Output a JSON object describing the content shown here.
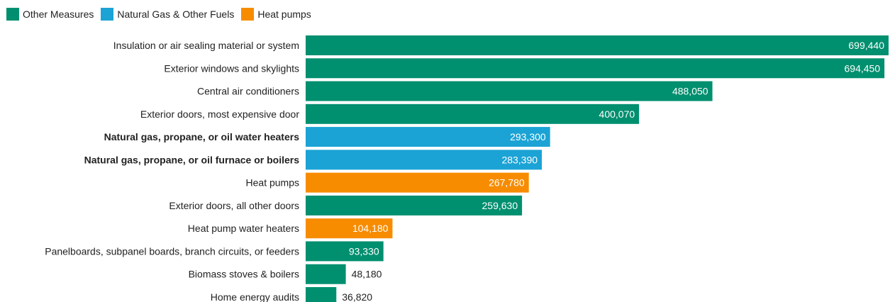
{
  "legend": [
    {
      "label": "Other Measures",
      "color": "#008f6f"
    },
    {
      "label": "Natural Gas & Other Fuels",
      "color": "#1ba3d5"
    },
    {
      "label": "Heat pumps",
      "color": "#f78c00"
    }
  ],
  "chart_data": {
    "type": "bar",
    "orientation": "horizontal",
    "xlim": [
      0,
      699440
    ],
    "grid": false,
    "legend_position": "top-left",
    "categories": [
      "Insulation or air sealing material or system",
      "Exterior windows and skylights",
      "Central air conditioners",
      "Exterior doors, most expensive door",
      "Natural gas, propane, or oil water heaters",
      "Natural gas, propane, or oil furnace or boilers",
      "Heat pumps",
      "Exterior doors, all other doors",
      "Heat pump water heaters",
      "Panelboards, subpanel boards, branch circuits, or feeders",
      "Biomass stoves & boilers",
      "Home energy audits"
    ],
    "values": [
      699440,
      694450,
      488050,
      400070,
      293300,
      283390,
      267780,
      259630,
      104180,
      93330,
      48180,
      36820
    ],
    "value_labels": [
      "699,440",
      "694,450",
      "488,050",
      "400,070",
      "293,300",
      "283,390",
      "267,780",
      "259,630",
      "104,180",
      "93,330",
      "48,180",
      "36,820"
    ],
    "groups": [
      "Other Measures",
      "Other Measures",
      "Other Measures",
      "Other Measures",
      "Natural Gas & Other Fuels",
      "Natural Gas & Other Fuels",
      "Heat pumps",
      "Other Measures",
      "Heat pumps",
      "Other Measures",
      "Other Measures",
      "Other Measures"
    ],
    "bold_categories": [
      "Natural gas, propane, or oil water heaters",
      "Natural gas, propane, or oil furnace or boilers"
    ]
  }
}
